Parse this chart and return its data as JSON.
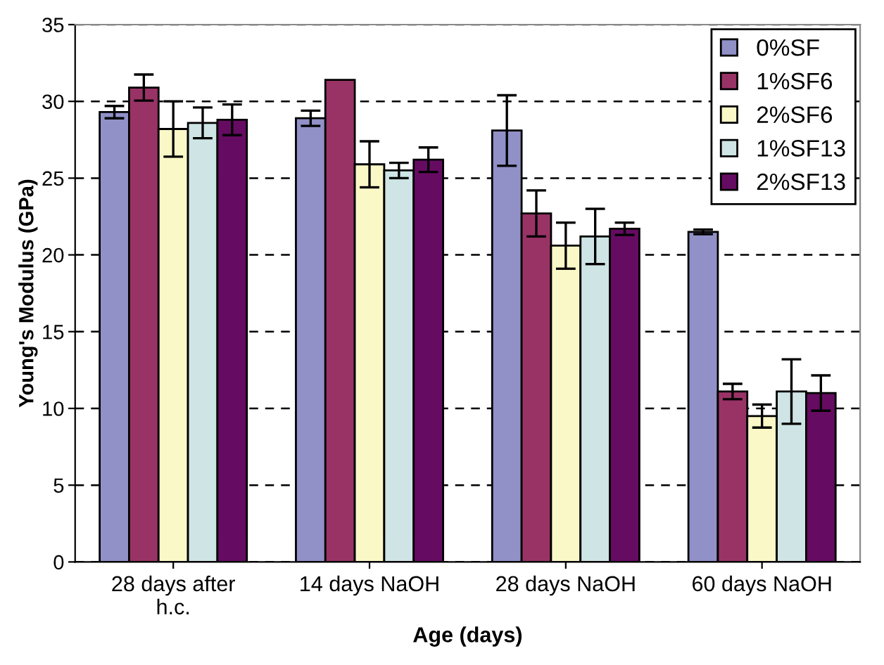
{
  "chart_data": {
    "type": "bar",
    "xlabel": "Age (days)",
    "ylabel": "Young's Modulus (GPa)",
    "categories": [
      "28 days after\nh.c.",
      "14 days NaOH",
      "28 days NaOH",
      "60 days NaOH"
    ],
    "series": [
      {
        "name": "0%SF",
        "color": "#9191c8",
        "values": [
          29.3,
          28.9,
          28.1,
          21.5
        ],
        "errors": [
          0.4,
          0.5,
          2.3,
          0.15
        ]
      },
      {
        "name": "1%SF6",
        "color": "#993366",
        "values": [
          30.9,
          31.4,
          22.7,
          11.1
        ],
        "errors": [
          0.85,
          null,
          1.5,
          0.5
        ]
      },
      {
        "name": "2%SF6",
        "color": "#fbf8c8",
        "values": [
          28.2,
          25.9,
          20.6,
          9.5
        ],
        "errors": [
          1.8,
          1.5,
          1.5,
          0.75
        ]
      },
      {
        "name": "1%SF13",
        "color": "#cfe4e4",
        "values": [
          28.6,
          25.5,
          21.2,
          11.1
        ],
        "errors": [
          1.0,
          0.5,
          1.8,
          2.1
        ]
      },
      {
        "name": "2%SF13",
        "color": "#660b62",
        "values": [
          28.8,
          26.2,
          21.7,
          11.0
        ],
        "errors": [
          1.0,
          0.8,
          0.4,
          1.15
        ]
      }
    ],
    "ylim": [
      0,
      35
    ],
    "yticks": [
      0,
      5,
      10,
      15,
      20,
      25,
      30,
      35
    ],
    "grid": "y",
    "legend": "top right"
  }
}
